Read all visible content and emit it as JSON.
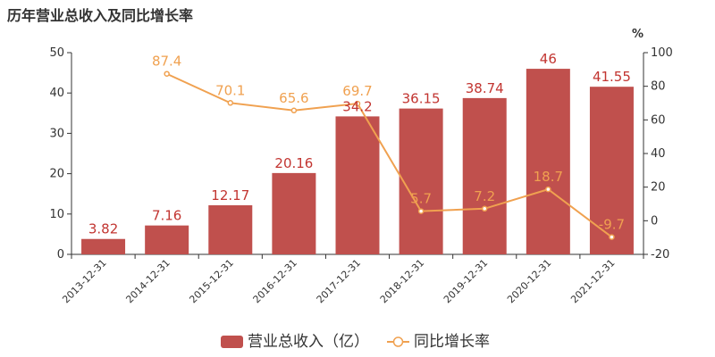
{
  "chart_data": {
    "type": "bar",
    "title": "历年营业总收入及同比增长率",
    "categories": [
      "2013-12-31",
      "2014-12-31",
      "2015-12-31",
      "2016-12-31",
      "2017-12-31",
      "2018-12-31",
      "2019-12-31",
      "2020-12-31",
      "2021-12-31"
    ],
    "series": [
      {
        "name": "营业总收入（亿）",
        "type": "bar",
        "axis": "left",
        "color": "#c0504d",
        "values": [
          3.82,
          7.16,
          12.17,
          20.16,
          34.2,
          36.15,
          38.74,
          46,
          41.55
        ]
      },
      {
        "name": "同比增长率",
        "type": "line",
        "axis": "right",
        "color": "#f0a150",
        "values": [
          null,
          87.4,
          70.1,
          65.6,
          69.7,
          5.7,
          7.2,
          18.7,
          -9.7
        ]
      }
    ],
    "bar_labels": [
      "3.82",
      "7.16",
      "12.17",
      "20.16",
      "34.2",
      "36.15",
      "38.74",
      "46",
      "41.55"
    ],
    "line_labels": [
      "",
      "87.4",
      "70.1",
      "65.6",
      "69.7",
      "5.7",
      "7.2",
      "18.7",
      "-9.7"
    ],
    "y_left": {
      "min": 0,
      "max": 50,
      "ticks": [
        0,
        10,
        20,
        30,
        40,
        50
      ]
    },
    "y_right": {
      "min": -20,
      "max": 100,
      "ticks": [
        -20,
        0,
        20,
        40,
        60,
        80,
        100
      ],
      "unit": "%"
    },
    "grid": false,
    "legend_position": "bottom-center"
  }
}
